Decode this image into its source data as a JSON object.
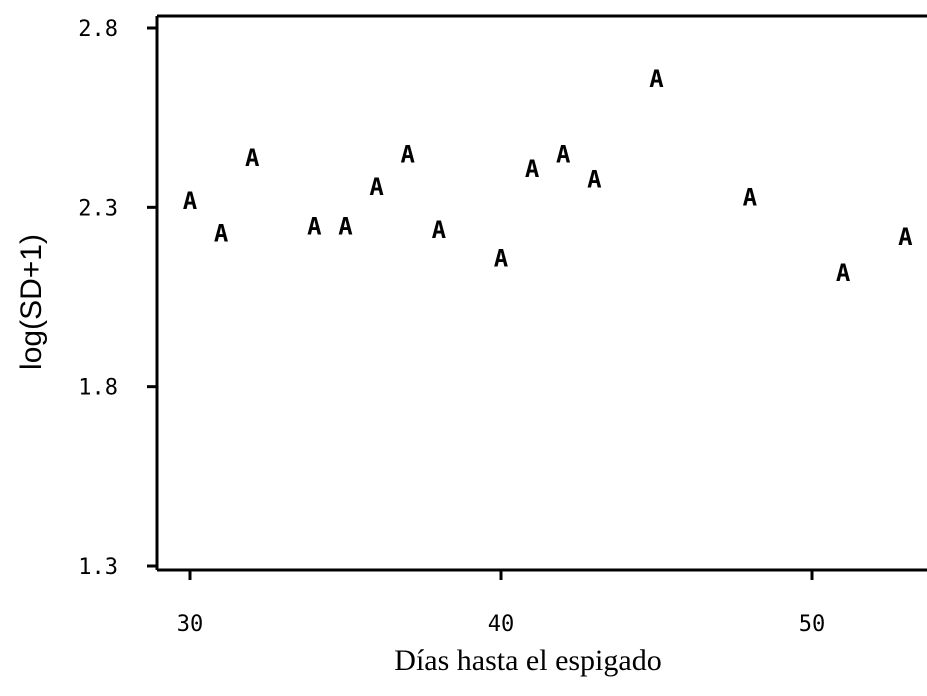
{
  "chart_data": {
    "type": "scatter",
    "xlabel": "Días hasta el espigado",
    "ylabel": "log(SD+1)",
    "marker": "A",
    "xlim": [
      29,
      53.5
    ],
    "ylim": [
      1.3,
      2.8
    ],
    "xticks": [
      30,
      40,
      50
    ],
    "yticks": [
      1.3,
      1.8,
      2.3,
      2.8
    ],
    "ytick_labels": [
      "1.3",
      "1.8",
      "2.3",
      "2.8"
    ],
    "xtick_labels": [
      "30",
      "40",
      "50"
    ],
    "points": [
      {
        "x": 30,
        "y": 2.32
      },
      {
        "x": 31,
        "y": 2.23
      },
      {
        "x": 32,
        "y": 2.44
      },
      {
        "x": 34,
        "y": 2.25
      },
      {
        "x": 35,
        "y": 2.25
      },
      {
        "x": 36,
        "y": 2.36
      },
      {
        "x": 37,
        "y": 2.45
      },
      {
        "x": 38,
        "y": 2.24
      },
      {
        "x": 40,
        "y": 2.16
      },
      {
        "x": 41,
        "y": 2.41
      },
      {
        "x": 42,
        "y": 2.45
      },
      {
        "x": 43,
        "y": 2.38
      },
      {
        "x": 45,
        "y": 2.66
      },
      {
        "x": 48,
        "y": 2.33
      },
      {
        "x": 51,
        "y": 2.12
      },
      {
        "x": 53,
        "y": 2.22
      }
    ]
  }
}
